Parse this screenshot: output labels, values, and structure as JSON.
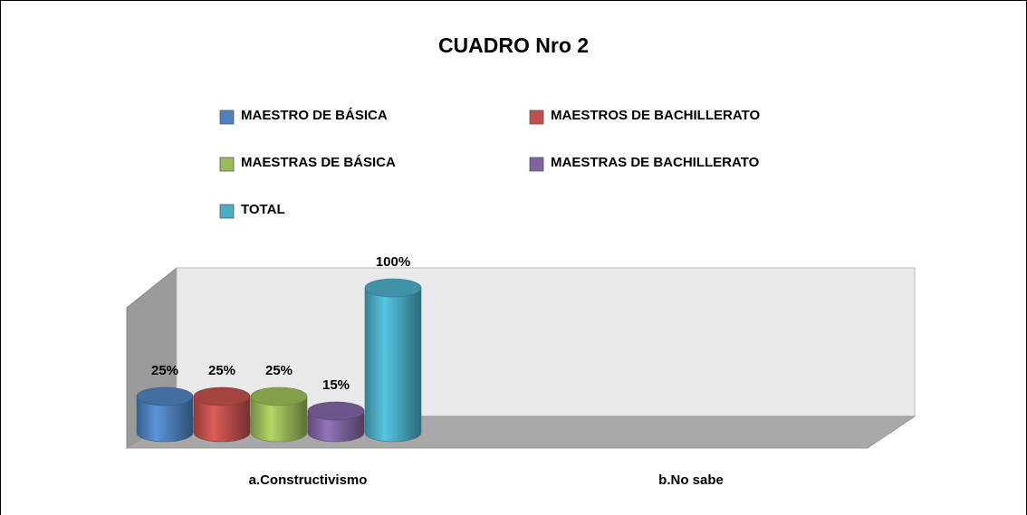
{
  "chart_data": {
    "type": "bar3d",
    "title": "CUADRO Nro 2",
    "categories": [
      "a.Constructivismo",
      "b.No sabe"
    ],
    "series": [
      {
        "name": "MAESTRO DE BÁSICA",
        "color": "#4f81bd",
        "values": [
          25,
          null
        ],
        "value_labels": [
          "25%",
          null
        ]
      },
      {
        "name": "MAESTROS DE BACHILLERATO",
        "color": "#c0504d",
        "values": [
          25,
          null
        ],
        "value_labels": [
          "25%",
          null
        ]
      },
      {
        "name": "MAESTRAS DE BÁSICA",
        "color": "#9bbb59",
        "values": [
          25,
          null
        ],
        "value_labels": [
          "25%",
          null
        ]
      },
      {
        "name": "MAESTRAS DE BACHILLERATO",
        "color": "#8064a2",
        "values": [
          15,
          null
        ],
        "value_labels": [
          "15%",
          null
        ]
      },
      {
        "name": "TOTAL",
        "color": "#4bacc6",
        "values": [
          100,
          null
        ],
        "value_labels": [
          "100%",
          null
        ]
      }
    ],
    "legend": "top"
  }
}
